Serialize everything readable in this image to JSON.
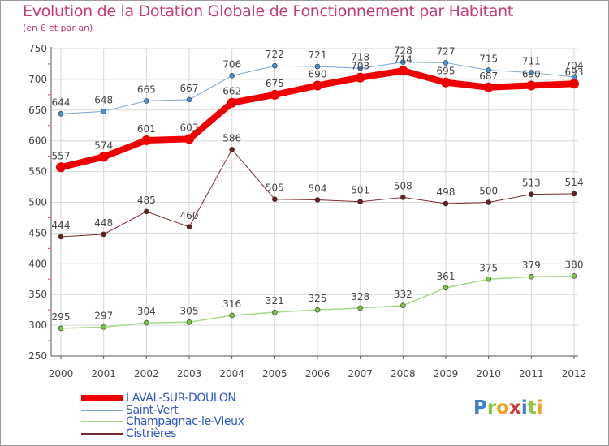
{
  "header": {
    "title": "Evolution de la Dotation Globale de Fonctionnement par Habitant",
    "subtitle": "(en € et par an)"
  },
  "colors": {
    "title": "#c83a78",
    "axis": "#555555",
    "grid": "#d9d9d9",
    "tick_text": "#444444",
    "label_text": "#444444",
    "legend_text": "#2c58c8"
  },
  "chart_data": {
    "type": "line",
    "title": "Evolution de la Dotation Globale de Fonctionnement par Habitant",
    "subtitle": "(en € et par an)",
    "xlabel": "",
    "ylabel": "",
    "categories": [
      "2000",
      "2001",
      "2002",
      "2003",
      "2004",
      "2005",
      "2006",
      "2007",
      "2008",
      "2009",
      "2010",
      "2011",
      "2012"
    ],
    "ylim": [
      250,
      750
    ],
    "yticks": [
      250,
      300,
      350,
      400,
      450,
      500,
      550,
      600,
      650,
      700,
      750
    ],
    "grid": true,
    "legend_position": "bottom-left",
    "series": [
      {
        "name": "Saint-Vert",
        "color": "#7aa6d4",
        "marker_color": "#4a90d0",
        "width": 1,
        "marker": 3,
        "values": [
          644,
          648,
          665,
          667,
          706,
          722,
          721,
          718,
          728,
          727,
          715,
          711,
          704
        ]
      },
      {
        "name": "Cistrières",
        "color": "#7a2a2a",
        "marker_color": "#6a1f1f",
        "width": 1,
        "marker": 3,
        "values": [
          444,
          448,
          485,
          460,
          586,
          505,
          504,
          501,
          508,
          498,
          500,
          513,
          514
        ]
      },
      {
        "name": "Champagnac-le-Vieux",
        "color": "#a6d88a",
        "marker_color": "#7cc44a",
        "width": 1.5,
        "marker": 3,
        "values": [
          295,
          297,
          304,
          305,
          316,
          321,
          325,
          328,
          332,
          361,
          375,
          379,
          380
        ]
      },
      {
        "name": "LAVAL-SUR-DOULON",
        "color": "#ee0000",
        "marker_color": "#ee0000",
        "width": 8,
        "marker": 6,
        "values": [
          557,
          574,
          601,
          603,
          662,
          675,
          690,
          703,
          714,
          695,
          687,
          690,
          693
        ]
      }
    ]
  },
  "legend": {
    "items": [
      {
        "label": "LAVAL-SUR-DOULON",
        "color": "#ee0000",
        "width": 8
      },
      {
        "label": "Saint-Vert",
        "color": "#7aa6d4",
        "width": 2
      },
      {
        "label": "Champagnac-le-Vieux",
        "color": "#a6d88a",
        "width": 2
      },
      {
        "label": "Cistrières",
        "color": "#7a2a2a",
        "width": 2
      }
    ]
  },
  "logo": {
    "letters": [
      "P",
      "r",
      "o",
      "x",
      "i",
      "t",
      "i"
    ],
    "colors": [
      "#3a7fd0",
      "#8cc640",
      "#f0a020",
      "#d03a3a",
      "#3a7fd0",
      "#8cc640",
      "#f0a020"
    ]
  }
}
